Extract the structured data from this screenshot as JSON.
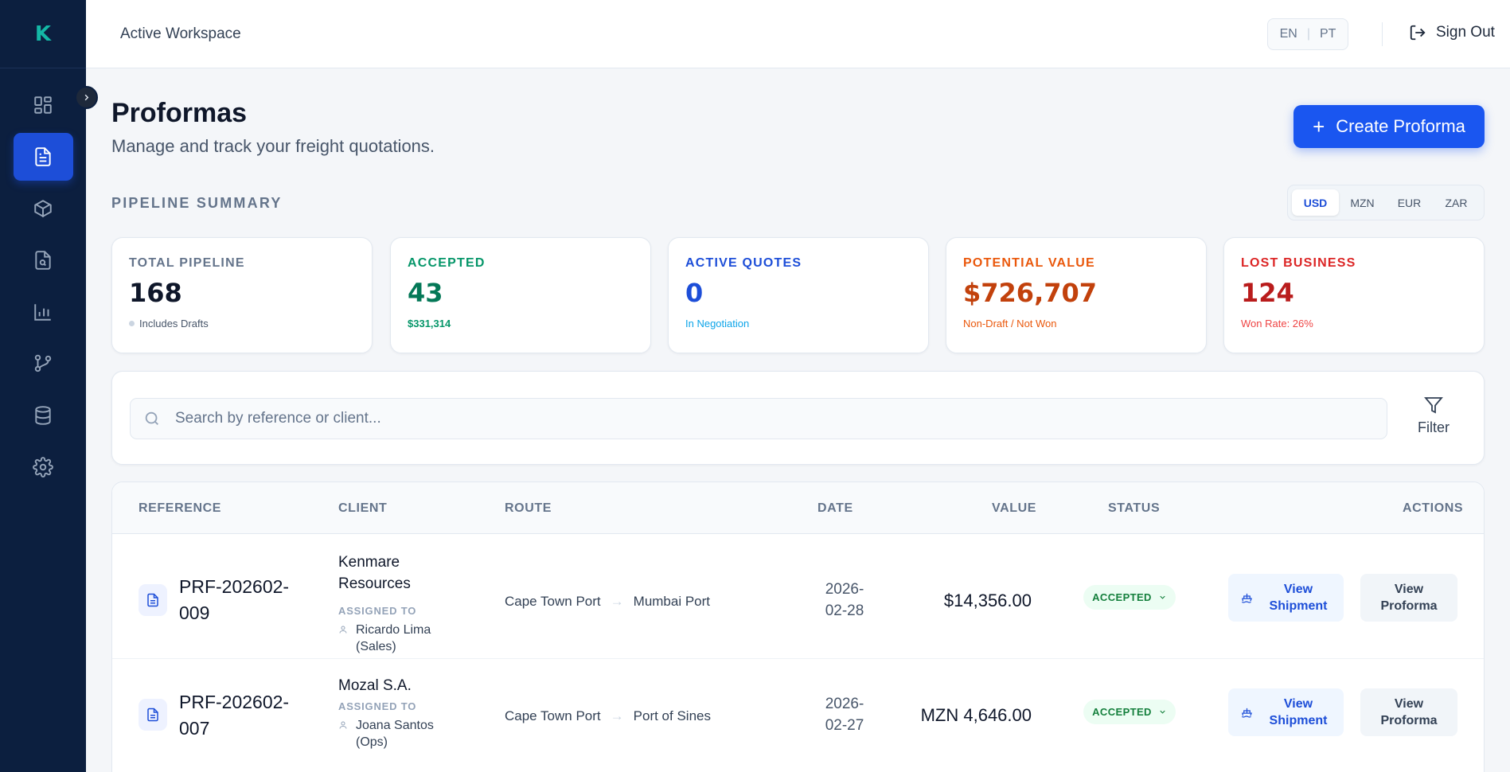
{
  "app": {
    "logo_letter": "K"
  },
  "topbar": {
    "workspace": "Active Workspace",
    "lang_en": "EN",
    "lang_sep": "|",
    "lang_pt": "PT",
    "sign_out": "Sign Out"
  },
  "sidebar": {
    "items": [
      {
        "icon": "dashboard-icon",
        "active": false
      },
      {
        "icon": "document-icon",
        "active": true
      },
      {
        "icon": "box-icon",
        "active": false
      },
      {
        "icon": "file-search-icon",
        "active": false
      },
      {
        "icon": "bar-chart-icon",
        "active": false
      },
      {
        "icon": "git-branch-icon",
        "active": false
      },
      {
        "icon": "database-icon",
        "active": false
      },
      {
        "icon": "gear-icon",
        "active": false
      }
    ]
  },
  "header": {
    "title": "Proformas",
    "subtitle": "Manage and track your freight quotations.",
    "create_label": "Create Proforma"
  },
  "pipeline": {
    "title": "PIPELINE SUMMARY",
    "currencies": [
      "USD",
      "MZN",
      "EUR",
      "ZAR"
    ],
    "selected_currency": "USD",
    "cards": [
      {
        "label": "TOTAL PIPELINE",
        "value": "168",
        "sub": "Includes Drafts",
        "color": "#0f172a",
        "label_color": "#64748b",
        "sub_color": "#475569"
      },
      {
        "label": "ACCEPTED",
        "value": "43",
        "sub": "$331,314",
        "color": "#047857",
        "label_color": "#059669",
        "sub_color": "#059669"
      },
      {
        "label": "ACTIVE QUOTES",
        "value": "0",
        "sub": "In Negotiation",
        "color": "#1d4ed8",
        "label_color": "#1d4ed8",
        "sub_color": "#0ea5e9"
      },
      {
        "label": "POTENTIAL VALUE",
        "value": "$726,707",
        "sub": "Non-Draft / Not Won",
        "color": "#c2410c",
        "label_color": "#ea580c",
        "sub_color": "#ea580c"
      },
      {
        "label": "LOST BUSINESS",
        "value": "124",
        "sub": "Won Rate: 26%",
        "color": "#b91c1c",
        "label_color": "#dc2626",
        "sub_color": "#ef4444"
      }
    ]
  },
  "search": {
    "placeholder": "Search by reference or client...",
    "filter_label": "Filter"
  },
  "table": {
    "columns": {
      "reference": "REFERENCE",
      "client": "CLIENT",
      "route": "ROUTE",
      "date": "DATE",
      "value": "VALUE",
      "status": "STATUS",
      "actions": "ACTIONS"
    },
    "assigned_label": "ASSIGNED TO",
    "rows": [
      {
        "ref_line1": "PRF-202602-",
        "ref_line2": "009",
        "client_line1": "Kenmare",
        "client_line2": "Resources",
        "assignee_line1": "Ricardo Lima",
        "assignee_line2": "(Sales)",
        "origin": "Cape Town Port",
        "arrow": "→",
        "destination": "Mumbai Port",
        "date_line1": "2026-",
        "date_line2": "02-28",
        "value": "$14,356.00",
        "status": "ACCEPTED",
        "ship_line1": "View",
        "ship_line2": "Shipment",
        "view_line1": "View",
        "view_line2": "Proforma"
      },
      {
        "ref_line1": "PRF-202602-",
        "ref_line2": "007",
        "client_line1": "Mozal S.A.",
        "client_line2": "",
        "assignee_line1": "Joana Santos",
        "assignee_line2": "(Ops)",
        "origin": "Cape Town Port",
        "arrow": "→",
        "destination": "Port of Sines",
        "date_line1": "2026-",
        "date_line2": "02-27",
        "value": "MZN 4,646.00",
        "status": "ACCEPTED",
        "ship_line1": "View",
        "ship_line2": "Shipment",
        "view_line1": "View",
        "view_line2": "Proforma"
      }
    ]
  }
}
